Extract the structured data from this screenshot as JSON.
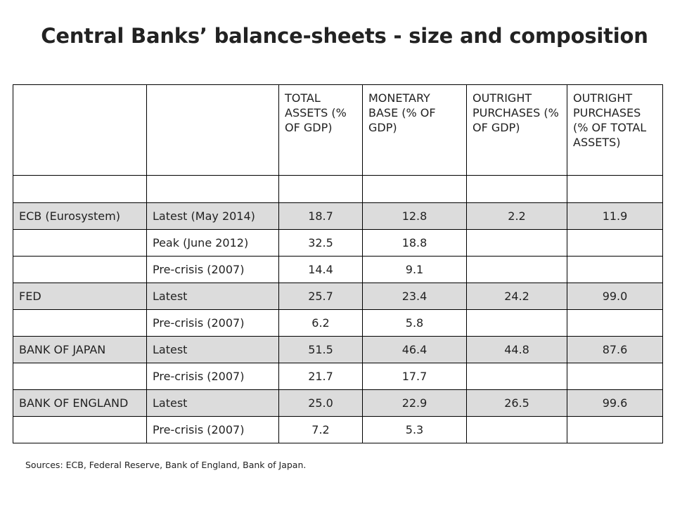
{
  "title": "Central  Banks’ balance-sheets - size and composition",
  "columns": [
    {
      "label": ""
    },
    {
      "label": ""
    },
    {
      "label": "TOTAL ASSETS (% OF GDP)"
    },
    {
      "label": "MONETARY BASE (% OF GDP)"
    },
    {
      "label": "OUTRIGHT PURCHASES (% OF GDP)"
    },
    {
      "label": "OUTRIGHT PURCHASES (% OF TOTAL ASSETS)"
    }
  ],
  "rows": [
    {
      "bank": "ECB (Eurosystem)",
      "period": "Latest (May 2014)",
      "total_assets": "18.7",
      "monetary_base": "12.8",
      "op_gdp": "2.2",
      "op_assets": "11.9"
    },
    {
      "bank": "",
      "period": "Peak (June 2012)",
      "total_assets": "32.5",
      "monetary_base": "18.8",
      "op_gdp": "",
      "op_assets": ""
    },
    {
      "bank": "",
      "period": "Pre-crisis (2007)",
      "total_assets": "14.4",
      "monetary_base": "9.1",
      "op_gdp": "",
      "op_assets": ""
    },
    {
      "bank": "FED",
      "period": "Latest",
      "total_assets": "25.7",
      "monetary_base": "23.4",
      "op_gdp": "24.2",
      "op_assets": "99.0"
    },
    {
      "bank": "",
      "period": "Pre-crisis (2007)",
      "total_assets": "6.2",
      "monetary_base": "5.8",
      "op_gdp": "",
      "op_assets": ""
    },
    {
      "bank": "BANK OF JAPAN",
      "period": "Latest",
      "total_assets": "51.5",
      "monetary_base": "46.4",
      "op_gdp": "44.8",
      "op_assets": "87.6"
    },
    {
      "bank": "",
      "period": "Pre-crisis (2007)",
      "total_assets": "21.7",
      "monetary_base": "17.7",
      "op_gdp": "",
      "op_assets": ""
    },
    {
      "bank": "BANK OF ENGLAND",
      "period": "Latest",
      "total_assets": "25.0",
      "monetary_base": "22.9",
      "op_gdp": "26.5",
      "op_assets": "99.6"
    },
    {
      "bank": "",
      "period": "Pre-crisis (2007)",
      "total_assets": "7.2",
      "monetary_base": "5.3",
      "op_gdp": "",
      "op_assets": ""
    }
  ],
  "sources": "Sources: ECB, Federal Reserve, Bank of England, Bank of Japan."
}
